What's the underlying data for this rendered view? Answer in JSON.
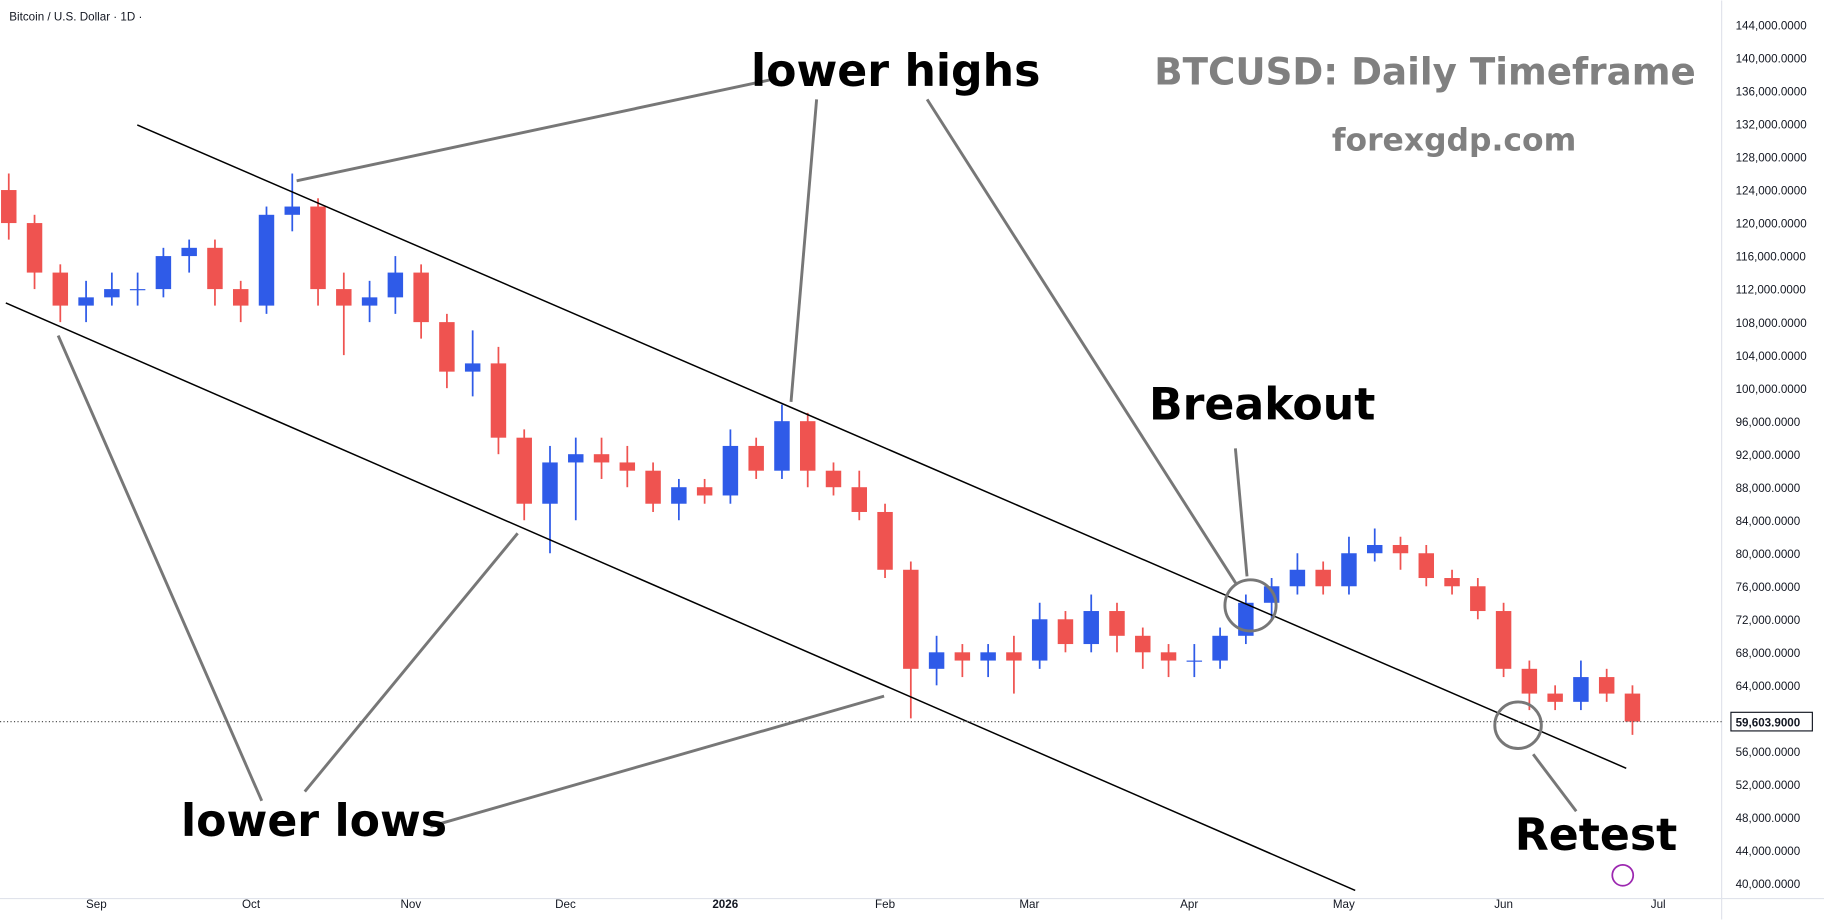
{
  "chart_data": {
    "type": "candlestick",
    "header": "Bitcoin / U.S. Dollar · 1D ·",
    "title": "BTCUSD: Daily Timeframe",
    "subtitle": "forexgdp.com",
    "annotations": [
      "lower highs",
      "lower lows",
      "Breakout",
      "Retest"
    ],
    "x": [
      -5,
      0,
      5,
      10,
      15,
      20,
      25,
      30,
      35,
      40,
      45,
      50,
      55,
      60,
      65,
      70,
      75,
      80,
      85,
      90,
      95,
      100,
      105,
      110,
      115,
      120,
      125,
      130,
      135,
      140,
      145,
      150,
      155,
      160,
      165,
      170,
      175,
      180,
      185,
      190,
      195,
      200,
      205,
      210,
      215,
      220,
      225,
      230,
      235,
      240,
      245,
      250,
      255,
      260,
      265,
      270,
      275,
      280,
      285,
      290,
      295,
      300,
      305,
      310
    ],
    "open": [
      124000,
      120000,
      114000,
      110000,
      111000,
      112000,
      112000,
      116000,
      117000,
      112000,
      110000,
      121000,
      122000,
      112000,
      110000,
      111000,
      114000,
      108000,
      102000,
      103000,
      94000,
      86000,
      91000,
      92000,
      91000,
      90000,
      86000,
      88000,
      87000,
      93000,
      90000,
      96000,
      90000,
      88000,
      85000,
      78000,
      66000,
      68000,
      67000,
      68000,
      67000,
      72000,
      69000,
      73000,
      70000,
      68000,
      67000,
      67000,
      70000,
      74000,
      76000,
      78000,
      76000,
      80000,
      81000,
      80000,
      77000,
      76000,
      73000,
      66000,
      63000,
      62000,
      65000,
      63000
    ],
    "high": [
      126000,
      121000,
      115000,
      113000,
      114000,
      114000,
      117000,
      118000,
      118000,
      113000,
      122000,
      126000,
      123000,
      114000,
      113000,
      116000,
      115000,
      109000,
      107000,
      105000,
      95000,
      93000,
      94000,
      94000,
      93000,
      91000,
      89000,
      89000,
      95000,
      94000,
      98000,
      97000,
      91000,
      90000,
      86000,
      79000,
      70000,
      69000,
      69000,
      70000,
      74000,
      73000,
      75000,
      74000,
      71000,
      69000,
      69000,
      71000,
      75000,
      77000,
      80000,
      79000,
      82000,
      83000,
      82000,
      81000,
      78000,
      77000,
      74000,
      67000,
      64000,
      67000,
      66000,
      64000
    ],
    "low": [
      118000,
      112000,
      108000,
      108000,
      110000,
      110000,
      111000,
      114000,
      110000,
      108000,
      109000,
      119000,
      110000,
      104000,
      108000,
      109000,
      106000,
      100000,
      99000,
      92000,
      84000,
      80000,
      84000,
      89000,
      88000,
      85000,
      84000,
      86000,
      86000,
      89000,
      89000,
      88000,
      87000,
      84000,
      77000,
      60000,
      64000,
      65000,
      65000,
      63000,
      66000,
      68000,
      68000,
      68000,
      66000,
      65000,
      65000,
      66000,
      69000,
      72000,
      75000,
      75000,
      75000,
      79000,
      78000,
      76000,
      75000,
      72000,
      65000,
      61000,
      61000,
      61000,
      62000,
      58000
    ],
    "close": [
      120000,
      114000,
      110000,
      111000,
      112000,
      112000,
      116000,
      117000,
      112000,
      110000,
      121000,
      122000,
      112000,
      110000,
      111000,
      114000,
      108000,
      102000,
      103000,
      94000,
      86000,
      91000,
      92000,
      91000,
      90000,
      86000,
      88000,
      87000,
      93000,
      90000,
      96000,
      90000,
      88000,
      85000,
      78000,
      66000,
      68000,
      67000,
      68000,
      67000,
      72000,
      69000,
      73000,
      70000,
      68000,
      67000,
      67000,
      70000,
      74000,
      76000,
      78000,
      76000,
      80000,
      81000,
      80000,
      77000,
      76000,
      73000,
      66000,
      63000,
      62000,
      65000,
      63000,
      59603.9
    ],
    "up_color": "#2f5be8",
    "down_color": "#ef5350",
    "last_price": {
      "value": 59603.9,
      "label": "59,603.9000"
    },
    "xlim": [
      -6.7,
      327.3
    ],
    "xticks": [
      {
        "value": 12,
        "label": "Sep"
      },
      {
        "value": 42,
        "label": "Oct"
      },
      {
        "value": 73,
        "label": "Nov"
      },
      {
        "value": 103,
        "label": "Dec"
      },
      {
        "value": 134,
        "label": "2026"
      },
      {
        "value": 165,
        "label": "Feb"
      },
      {
        "value": 193,
        "label": "Mar"
      },
      {
        "value": 224,
        "label": "Apr"
      },
      {
        "value": 254,
        "label": "May"
      },
      {
        "value": 285,
        "label": "Jun"
      },
      {
        "value": 315,
        "label": "Jul"
      }
    ],
    "ylim": [
      38170,
      146960
    ],
    "yticks": [
      {
        "value": 40000,
        "label": "40,000.0000"
      },
      {
        "value": 44000,
        "label": "44,000.0000"
      },
      {
        "value": 48000,
        "label": "48,000.0000"
      },
      {
        "value": 52000,
        "label": "52,000.0000"
      },
      {
        "value": 56000,
        "label": "56,000.0000"
      },
      {
        "value": 60000,
        "label": "60,000.0000"
      },
      {
        "value": 64000,
        "label": "64,000.0000"
      },
      {
        "value": 68000,
        "label": "68,000.0000"
      },
      {
        "value": 72000,
        "label": "72,000.0000"
      },
      {
        "value": 76000,
        "label": "76,000.0000"
      },
      {
        "value": 80000,
        "label": "80,000.0000"
      },
      {
        "value": 84000,
        "label": "84,000.0000"
      },
      {
        "value": 88000,
        "label": "88,000.0000"
      },
      {
        "value": 92000,
        "label": "92,000.0000"
      },
      {
        "value": 96000,
        "label": "96,000.0000"
      },
      {
        "value": 100000,
        "label": "100,000.0000"
      },
      {
        "value": 104000,
        "label": "104,000.0000"
      },
      {
        "value": 108000,
        "label": "108,000.0000"
      },
      {
        "value": 112000,
        "label": "112,000.0000"
      },
      {
        "value": 116000,
        "label": "116,000.0000"
      },
      {
        "value": 120000,
        "label": "120,000.0000"
      },
      {
        "value": 124000,
        "label": "124,000.0000"
      },
      {
        "value": 128000,
        "label": "128,000.0000"
      },
      {
        "value": 132000,
        "label": "132,000.0000"
      },
      {
        "value": 136000,
        "label": "136,000.0000"
      },
      {
        "value": 140000,
        "label": "140,000.0000"
      },
      {
        "value": 144000,
        "label": "144,000.0000"
      }
    ],
    "grid": false
  }
}
